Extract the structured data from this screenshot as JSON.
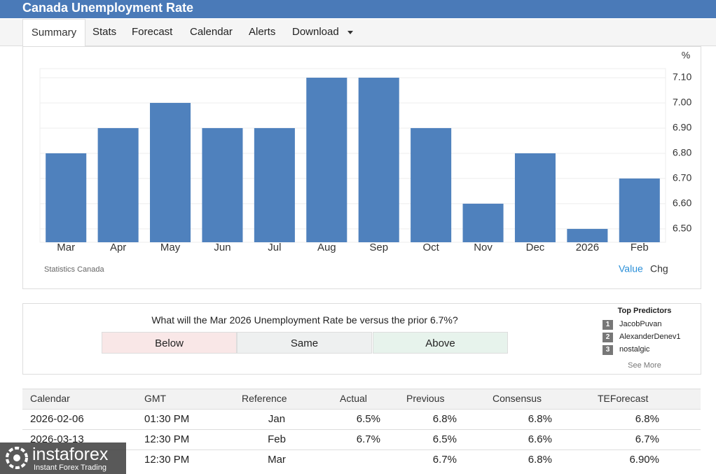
{
  "header": {
    "title": "Canada Unemployment Rate"
  },
  "tabs": [
    "Summary",
    "Stats",
    "Forecast",
    "Calendar",
    "Alerts",
    "Download"
  ],
  "chart_data": {
    "type": "bar",
    "unit": "%",
    "categories": [
      "Mar",
      "Apr",
      "May",
      "Jun",
      "Jul",
      "Aug",
      "Sep",
      "Oct",
      "Nov",
      "Dec",
      "2026",
      "Feb"
    ],
    "values": [
      6.8,
      6.9,
      7.0,
      6.9,
      6.9,
      7.1,
      7.1,
      6.9,
      6.6,
      6.8,
      6.5,
      6.7
    ],
    "color": "#4f81bd",
    "ylim": [
      6.447,
      7.136
    ],
    "yticks": [
      {
        "value": 6.5,
        "label": "6.50"
      },
      {
        "value": 6.6,
        "label": "6.60"
      },
      {
        "value": 6.7,
        "label": "6.70"
      },
      {
        "value": 6.8,
        "label": "6.80"
      },
      {
        "value": 6.9,
        "label": "6.90"
      },
      {
        "value": 7.0,
        "label": "7.00"
      },
      {
        "value": 7.1,
        "label": "7.10"
      }
    ],
    "grid": true,
    "source": "Statistics Canada",
    "toggles": [
      "Value",
      "Chg"
    ]
  },
  "poll": {
    "question": "What will the Mar 2026 Unemployment Rate be versus the prior 6.7%?",
    "options": [
      "Below",
      "Same",
      "Above"
    ]
  },
  "predictors": {
    "title": "Top Predictors",
    "items": [
      {
        "rank": 1,
        "name": "JacobPuvan"
      },
      {
        "rank": 2,
        "name": "AlexanderDenev1"
      },
      {
        "rank": 3,
        "name": "nostalgic"
      }
    ],
    "more": "See More"
  },
  "table": {
    "columns": [
      "Calendar",
      "GMT",
      "Reference",
      "Actual",
      "Previous",
      "Consensus",
      "TEForecast"
    ],
    "rows": [
      [
        "2026-02-06",
        "01:30 PM",
        "Jan",
        "6.5%",
        "6.8%",
        "6.8%",
        "6.8%"
      ],
      [
        "2026-03-13",
        "12:30 PM",
        "Feb",
        "6.7%",
        "6.5%",
        "6.6%",
        "6.7%"
      ],
      [
        null,
        "12:30 PM",
        "Mar",
        null,
        "6.7%",
        "6.8%",
        "6.90%"
      ]
    ]
  },
  "watermark": {
    "brand": "instaforex",
    "tagline": "Instant Forex Trading"
  }
}
